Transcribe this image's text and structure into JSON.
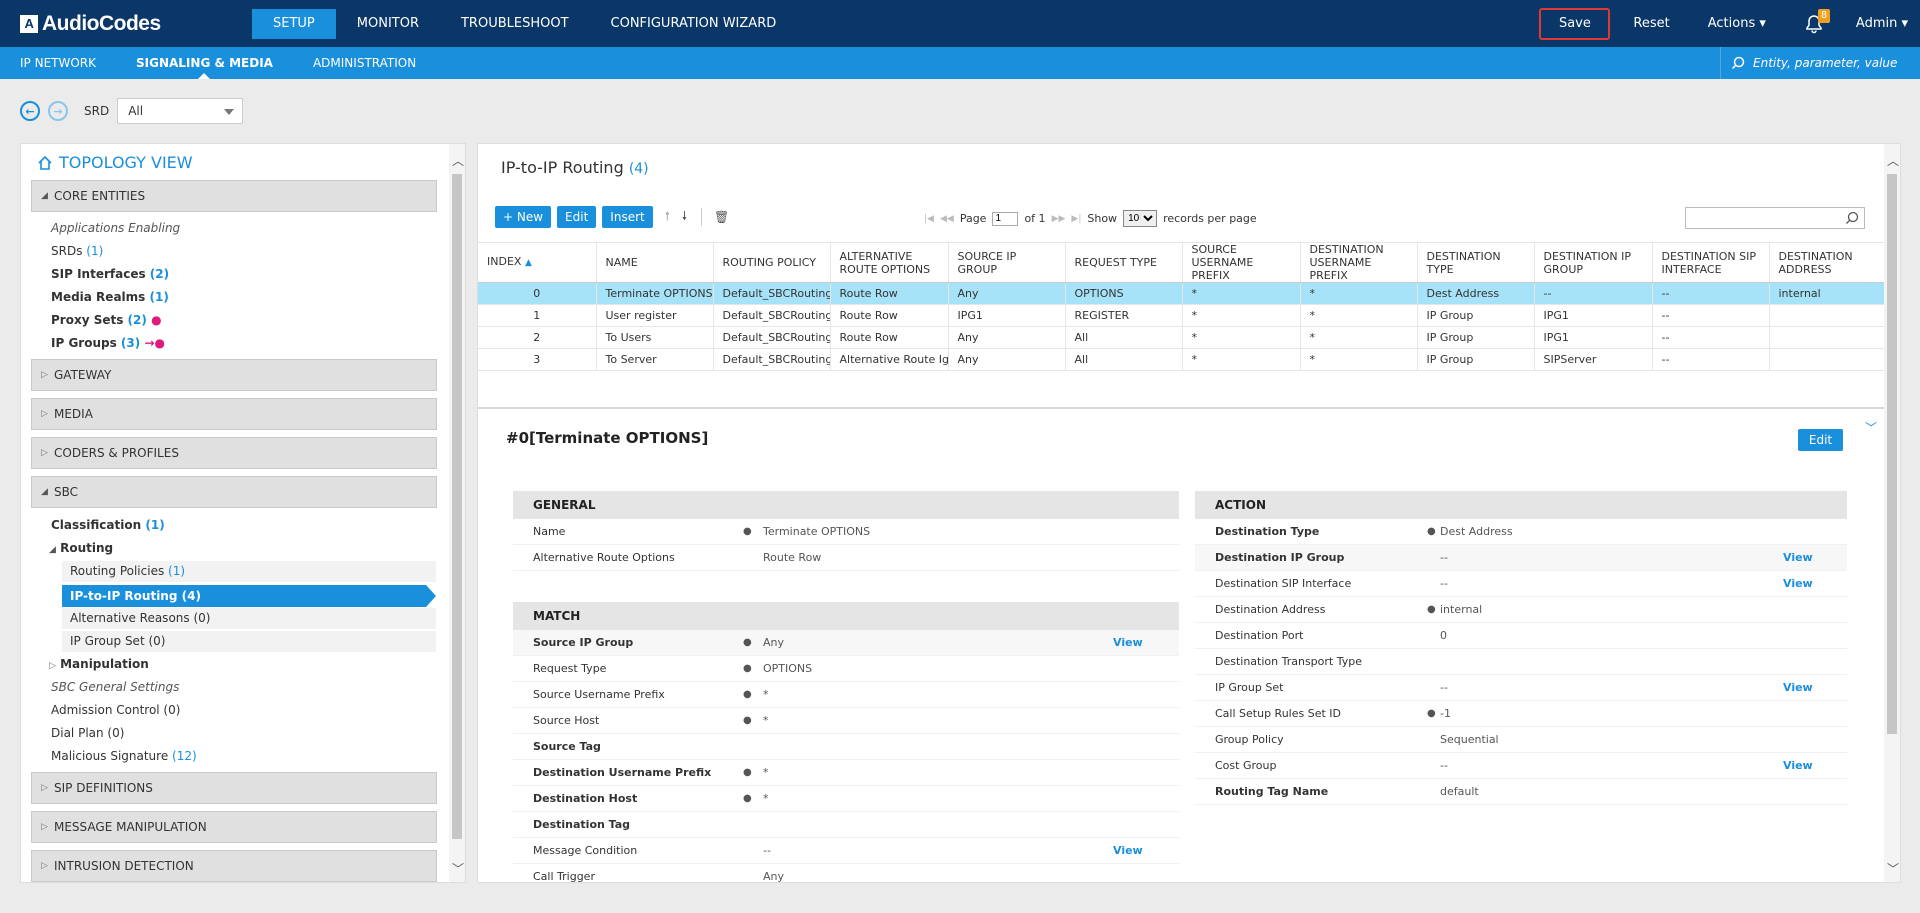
{
  "app": {
    "logo_text": "AudioCodes",
    "logo_mark": "A"
  },
  "top_nav": {
    "items": [
      "SETUP",
      "MONITOR",
      "TROUBLESHOOT",
      "CONFIGURATION WIZARD"
    ]
  },
  "top_right": {
    "save": "Save",
    "reset": "Reset",
    "actions": "Actions ▾",
    "notification_count": "8",
    "admin": "Admin ▾"
  },
  "sub_nav": {
    "items": [
      "IP NETWORK",
      "SIGNALING & MEDIA",
      "ADMINISTRATION"
    ],
    "search_placeholder": "Entity, parameter, value"
  },
  "srd": {
    "label": "SRD",
    "value": "All"
  },
  "topology": {
    "title": "TOPOLOGY VIEW",
    "core_entities": "CORE ENTITIES",
    "apps_enabling": "Applications Enabling",
    "srds": "SRDs",
    "srds_count": "(1)",
    "sip_interfaces": "SIP Interfaces",
    "sip_interfaces_count": "(2)",
    "media_realms": "Media Realms",
    "media_realms_count": "(1)",
    "proxy_sets": "Proxy Sets",
    "proxy_sets_count": "(2)",
    "ip_groups": "IP Groups",
    "ip_groups_count": "(3)",
    "gateway": "GATEWAY",
    "media": "MEDIA",
    "coders_profiles": "CODERS & PROFILES",
    "sbc": "SBC",
    "classification": "Classification",
    "classification_count": "(1)",
    "routing": "Routing",
    "routing_policies": "Routing Policies",
    "routing_policies_count": "(1)",
    "ip_to_ip_routing": "IP-to-IP Routing (4)",
    "alternative_reasons": "Alternative Reasons (0)",
    "ip_group_set": "IP Group Set (0)",
    "manipulation": "Manipulation",
    "sbc_general_settings": "SBC General Settings",
    "admission_control": "Admission Control (0)",
    "dial_plan": "Dial Plan (0)",
    "malicious_signature": "Malicious Signature",
    "malicious_signature_count": "(12)",
    "sip_definitions": "SIP DEFINITIONS",
    "message_manipulation": "MESSAGE MANIPULATION",
    "intrusion_detection": "INTRUSION DETECTION"
  },
  "main": {
    "title": "IP-to-IP Routing",
    "count": "(4)",
    "toolbar": {
      "new": "+ New",
      "edit": "Edit",
      "insert": "Insert"
    },
    "pager": {
      "page": "Page",
      "page_value": "1",
      "of": "of 1",
      "show": "Show",
      "per_page_value": "10",
      "records": "records per page"
    },
    "columns": [
      "INDEX",
      "NAME",
      "ROUTING POLICY",
      "ALTERNATIVE ROUTE OPTIONS",
      "SOURCE IP GROUP",
      "REQUEST TYPE",
      "SOURCE USERNAME PREFIX",
      "DESTINATION USERNAME PREFIX",
      "DESTINATION TYPE",
      "DESTINATION IP GROUP",
      "DESTINATION SIP INTERFACE",
      "DESTINATION ADDRESS"
    ],
    "rows": [
      [
        "0",
        "Terminate OPTIONS",
        "Default_SBCRoutingPolicy",
        "Route Row",
        "Any",
        "OPTIONS",
        "*",
        "*",
        "Dest Address",
        "--",
        "--",
        "internal"
      ],
      [
        "1",
        "User register",
        "Default_SBCRoutingPolicy",
        "Route Row",
        "IPG1",
        "REGISTER",
        "*",
        "*",
        "IP Group",
        "IPG1",
        "--",
        ""
      ],
      [
        "2",
        "To Users",
        "Default_SBCRoutingPolicy",
        "Route Row",
        "Any",
        "All",
        "*",
        "*",
        "IP Group",
        "IPG1",
        "--",
        ""
      ],
      [
        "3",
        "To Server",
        "Default_SBCRoutingPolicy",
        "Alternative Route Ignore Inputs",
        "Any",
        "All",
        "*",
        "*",
        "IP Group",
        "SIPServer",
        "--",
        ""
      ]
    ]
  },
  "detail": {
    "title": "#0[Terminate OPTIONS]",
    "edit": "Edit",
    "view": "View",
    "general": {
      "header": "GENERAL",
      "name_k": "Name",
      "name_v": "Terminate OPTIONS",
      "alt_k": "Alternative Route Options",
      "alt_v": "Route Row"
    },
    "match": {
      "header": "MATCH",
      "src_ip_k": "Source IP Group",
      "src_ip_v": "Any",
      "req_k": "Request Type",
      "req_v": "OPTIONS",
      "src_user_k": "Source Username Prefix",
      "src_user_v": "*",
      "src_host_k": "Source Host",
      "src_host_v": "*",
      "src_tag_k": "Source Tag",
      "dst_user_k": "Destination Username Prefix",
      "dst_user_v": "*",
      "dst_host_k": "Destination Host",
      "dst_host_v": "*",
      "dst_tag_k": "Destination Tag",
      "msg_cond_k": "Message Condition",
      "msg_cond_v": "--",
      "call_trig_k": "Call Trigger",
      "call_trig_v": "Any"
    },
    "action": {
      "header": "ACTION",
      "dtype_k": "Destination Type",
      "dtype_v": "Dest Address",
      "dipg_k": "Destination IP Group",
      "dipg_v": "--",
      "dsip_k": "Destination SIP Interface",
      "dsip_v": "--",
      "daddr_k": "Destination Address",
      "daddr_v": "internal",
      "dport_k": "Destination Port",
      "dport_v": "0",
      "dtrans_k": "Destination Transport Type",
      "ipgs_k": "IP Group Set",
      "ipgs_v": "--",
      "csr_k": "Call Setup Rules Set ID",
      "csr_v": "-1",
      "gp_k": "Group Policy",
      "gp_v": "Sequential",
      "cg_k": "Cost Group",
      "cg_v": "--",
      "rtn_k": "Routing Tag Name",
      "rtn_v": "default"
    }
  }
}
